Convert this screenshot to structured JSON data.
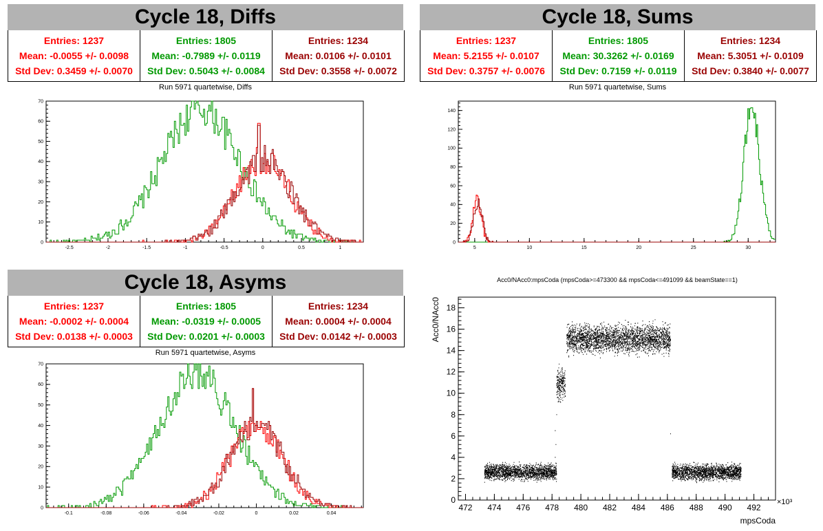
{
  "panels": [
    {
      "banner": "Cycle 18, Diffs",
      "stats": [
        {
          "entries": "Entries: 1237",
          "mean": "Mean: -0.0055 +/- 0.0098",
          "std": "Std Dev: 0.3459 +/- 0.0070",
          "color": "#ff0000"
        },
        {
          "entries": "Entries: 1805",
          "mean": "Mean: -0.7989 +/- 0.0119",
          "std": "Std Dev: 0.5043 +/- 0.0084",
          "color": "#009900"
        },
        {
          "entries": "Entries: 1234",
          "mean": "Mean: 0.0106 +/- 0.0101",
          "std": "Std Dev: 0.3558 +/- 0.0072",
          "color": "#990000"
        }
      ],
      "subtitle": "Run 5971 quartetwise, Diffs"
    },
    {
      "banner": "Cycle 18, Sums",
      "stats": [
        {
          "entries": "Entries: 1237",
          "mean": "Mean: 5.2155 +/- 0.0107",
          "std": "Std Dev: 0.3757 +/- 0.0076",
          "color": "#ff0000"
        },
        {
          "entries": "Entries: 1805",
          "mean": "Mean: 30.3262 +/- 0.0169",
          "std": "Std Dev: 0.7159 +/- 0.0119",
          "color": "#009900"
        },
        {
          "entries": "Entries: 1234",
          "mean": "Mean: 5.3051 +/- 0.0109",
          "std": "Std Dev: 0.3840 +/- 0.0077",
          "color": "#990000"
        }
      ],
      "subtitle": "Run 5971 quartetwise, Sums"
    },
    {
      "banner": "Cycle 18, Asyms",
      "stats": [
        {
          "entries": "Entries: 1237",
          "mean": "Mean: -0.0002 +/- 0.0004",
          "std": "Std Dev: 0.0138 +/- 0.0003",
          "color": "#ff0000"
        },
        {
          "entries": "Entries: 1805",
          "mean": "Mean: -0.0319 +/- 0.0005",
          "std": "Std Dev: 0.0201 +/- 0.0003",
          "color": "#009900"
        },
        {
          "entries": "Entries: 1234",
          "mean": "Mean: 0.0004 +/- 0.0004",
          "std": "Std Dev: 0.0142 +/- 0.0003",
          "color": "#990000"
        }
      ],
      "subtitle": "Run 5971 quartetwise, Asyms"
    }
  ],
  "scatter_title": "Acc0/NAcc0:mpsCoda (mpsCoda>=473300 && mpsCoda<=491099 && beamState==1)",
  "chart_data": [
    {
      "type": "histogram",
      "title": "Run 5971 quartetwise, Diffs",
      "xlim": [
        -2.8,
        1.3
      ],
      "ylim": [
        0,
        70
      ],
      "xticks": [
        "-2.5",
        "-2",
        "-1.5",
        "-1",
        "-0.5",
        "0",
        "0.5",
        "1"
      ],
      "yticks": [
        "0",
        "10",
        "20",
        "30",
        "40",
        "50",
        "60",
        "70"
      ],
      "series": [
        {
          "color": "#009900",
          "entries": 1805,
          "mean": -0.7989,
          "std": 0.5043,
          "peak": 66
        },
        {
          "color": "#ff0000",
          "entries": 1237,
          "mean": -0.0055,
          "std": 0.3459,
          "peak": 41,
          "spike_x": -0.05,
          "spike": 59
        },
        {
          "color": "#990000",
          "entries": 1234,
          "mean": 0.0106,
          "std": 0.3558,
          "peak": 41,
          "spike_x": -0.05,
          "spike": 58
        }
      ]
    },
    {
      "type": "histogram",
      "title": "Run 5971 quartetwise, Sums",
      "xlim": [
        3.5,
        32.5
      ],
      "ylim": [
        0,
        150
      ],
      "xticks": [
        "5",
        "10",
        "15",
        "20",
        "25",
        "30"
      ],
      "yticks": [
        "0",
        "20",
        "40",
        "60",
        "80",
        "100",
        "120",
        "140"
      ],
      "series": [
        {
          "color": "#009900",
          "entries": 1805,
          "mean": 30.3262,
          "std": 0.7159,
          "peak": 145
        },
        {
          "color": "#ff0000",
          "entries": 1237,
          "mean": 5.2155,
          "std": 0.3757,
          "peak": 45
        },
        {
          "color": "#990000",
          "entries": 1234,
          "mean": 5.3051,
          "std": 0.384,
          "peak": 43
        }
      ]
    },
    {
      "type": "histogram",
      "title": "Run 5971 quartetwise, Asyms",
      "xlim": [
        -0.112,
        0.057
      ],
      "ylim": [
        0,
        70
      ],
      "xticks": [
        "-0.1",
        "-0.08",
        "-0.06",
        "-0.04",
        "-0.02",
        "0",
        "0.02",
        "0.04"
      ],
      "yticks": [
        "0",
        "10",
        "20",
        "30",
        "40",
        "50",
        "60",
        "70"
      ],
      "series": [
        {
          "color": "#009900",
          "entries": 1805,
          "mean": -0.0319,
          "std": 0.0201,
          "peak": 66
        },
        {
          "color": "#ff0000",
          "entries": 1237,
          "mean": -0.0002,
          "std": 0.0138,
          "peak": 40,
          "spike_x": -0.002,
          "spike": 58
        },
        {
          "color": "#990000",
          "entries": 1234,
          "mean": 0.0004,
          "std": 0.0142,
          "peak": 40,
          "spike_x": -0.002,
          "spike": 58
        }
      ]
    },
    {
      "type": "scatter",
      "title": "Acc0/NAcc0:mpsCoda (mpsCoda>=473300 && mpsCoda<=491099 && beamState==1)",
      "xlabel": "mpsCoda",
      "ylabel": "Acc0/NAcc0",
      "x_multiplier": "×10³",
      "xlim": [
        471.5,
        493.5
      ],
      "ylim": [
        0,
        19
      ],
      "xticks": [
        "472",
        "474",
        "476",
        "478",
        "480",
        "482",
        "484",
        "486",
        "488",
        "490",
        "492"
      ],
      "yticks": [
        "0",
        "2",
        "4",
        "6",
        "8",
        "10",
        "12",
        "14",
        "16",
        "18"
      ],
      "clusters": [
        {
          "x": [
            473.3,
            478.3
          ],
          "y_center": 2.6,
          "y_spread": 0.5
        },
        {
          "x": [
            478.3,
            478.9
          ],
          "y_center": 10.8,
          "y_spread": 1.0
        },
        {
          "x": [
            479.0,
            486.2
          ],
          "y_center": 15.1,
          "y_spread": 0.9
        },
        {
          "x": [
            486.3,
            491.1
          ],
          "y_center": 2.6,
          "y_spread": 0.5
        }
      ]
    }
  ]
}
